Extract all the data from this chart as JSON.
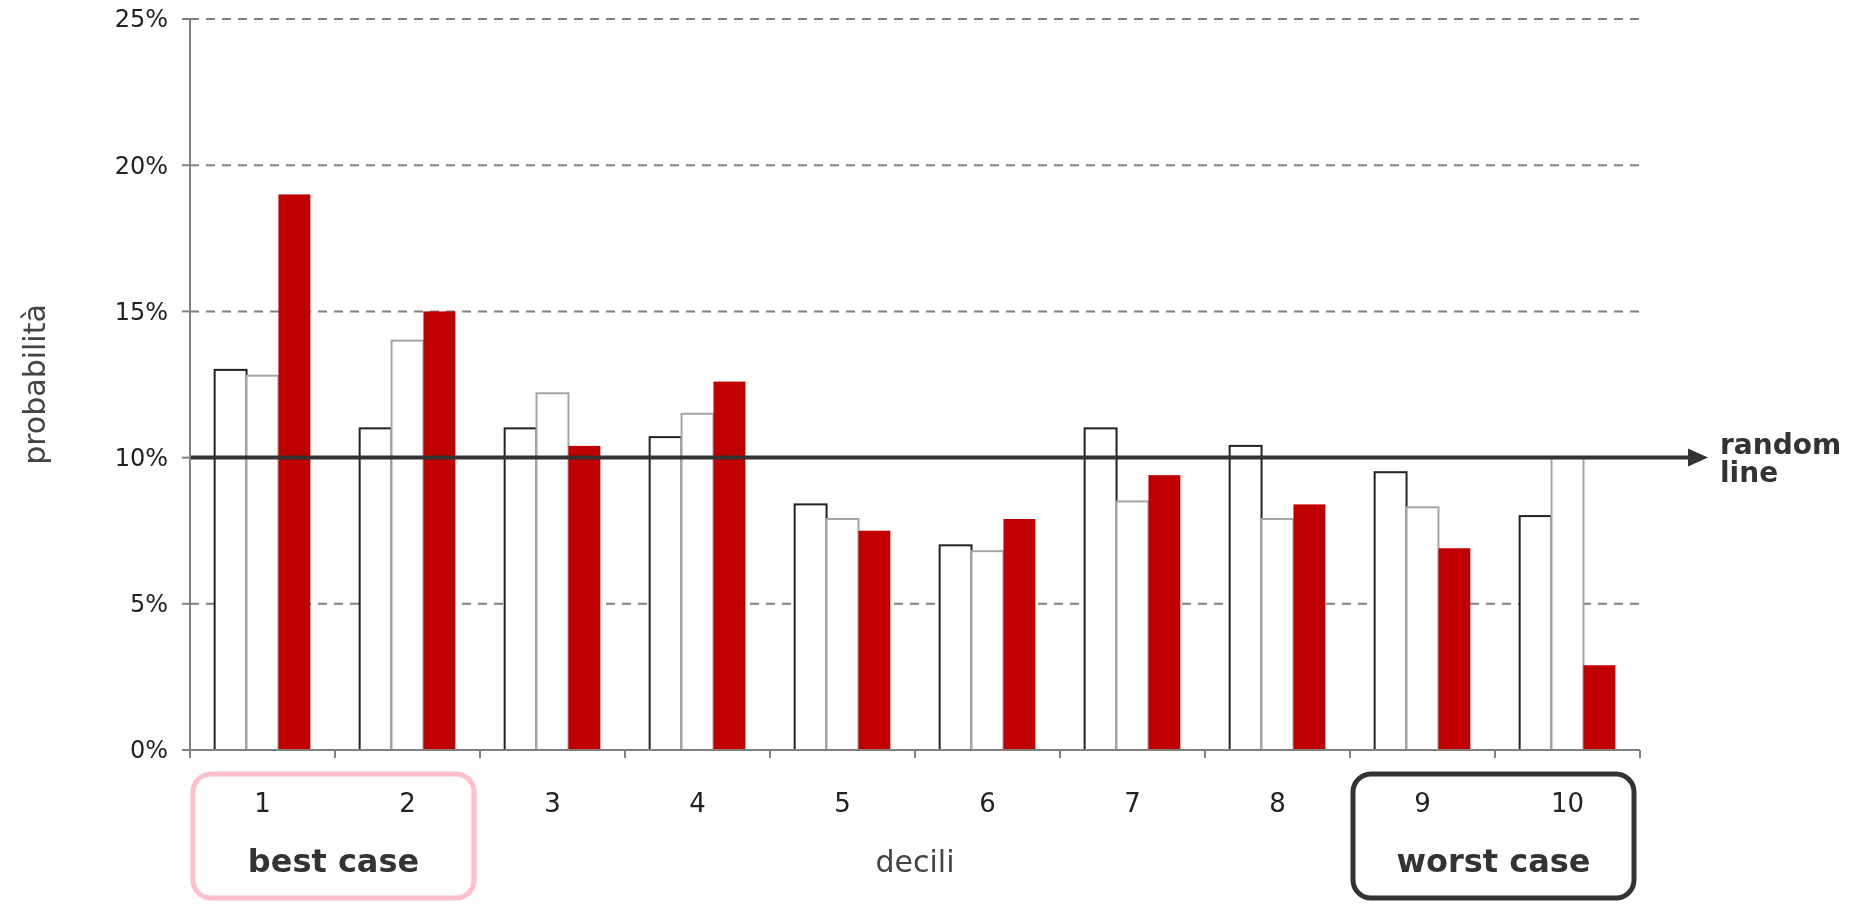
{
  "chart_data": {
    "type": "bar",
    "xlabel": "decili",
    "ylabel": "probabilità",
    "categories": [
      "1",
      "2",
      "3",
      "4",
      "5",
      "6",
      "7",
      "8",
      "9",
      "10"
    ],
    "series": [
      {
        "color": "#222222",
        "values": [
          13.0,
          11.0,
          11.0,
          10.7,
          8.4,
          7.0,
          11.0,
          10.4,
          9.5,
          8.0
        ]
      },
      {
        "color": "#a6a6a6",
        "values": [
          12.8,
          14.0,
          12.2,
          11.5,
          7.9,
          6.8,
          8.5,
          7.9,
          8.3,
          10.0
        ]
      },
      {
        "color": "#c00000",
        "values": [
          19.0,
          15.0,
          10.4,
          12.6,
          7.5,
          7.9,
          9.4,
          8.4,
          6.9,
          2.9
        ]
      }
    ],
    "ylim": [
      0,
      25
    ],
    "yticks": [
      {
        "value": 0,
        "label": "0%"
      },
      {
        "value": 5,
        "label": "5%"
      },
      {
        "value": 10,
        "label": "10%"
      },
      {
        "value": 15,
        "label": "15%"
      },
      {
        "value": 20,
        "label": "20%"
      },
      {
        "value": 25,
        "label": "25%"
      }
    ],
    "grid": "y",
    "ref_lines": [
      {
        "axis": "y",
        "value": 10,
        "label": "random line",
        "color": "#333333"
      }
    ],
    "annotations": [
      "best case",
      "worst case"
    ]
  }
}
